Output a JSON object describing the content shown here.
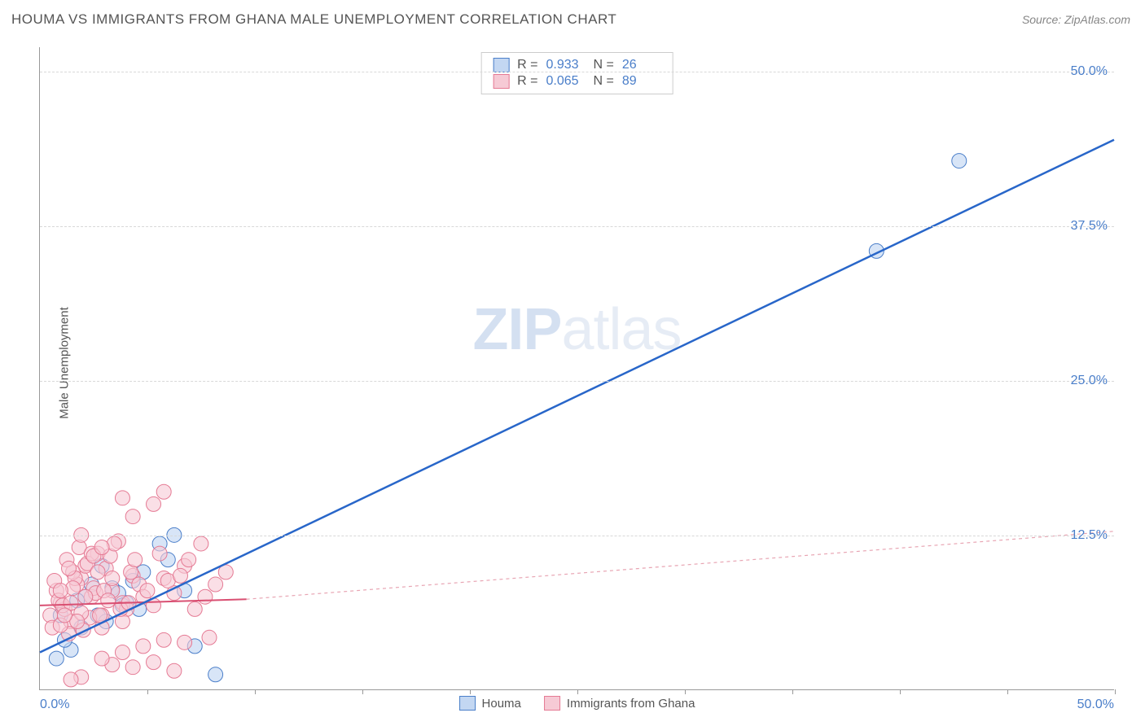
{
  "title": "HOUMA VS IMMIGRANTS FROM GHANA MALE UNEMPLOYMENT CORRELATION CHART",
  "source": "Source: ZipAtlas.com",
  "ylabel": "Male Unemployment",
  "watermark_bold": "ZIP",
  "watermark_light": "atlas",
  "chart": {
    "type": "scatter",
    "xlim": [
      0,
      52
    ],
    "ylim": [
      0,
      52
    ],
    "x_axis_labels": {
      "left": "0.0%",
      "right": "50.0%"
    },
    "y_gridlines": [
      12.5,
      25.0,
      37.5,
      50.0
    ],
    "y_tick_labels": [
      "12.5%",
      "25.0%",
      "37.5%",
      "50.0%"
    ],
    "x_tick_positions_pct": [
      10,
      20,
      30,
      40,
      50,
      60,
      70,
      80,
      90,
      100
    ],
    "background_color": "#ffffff",
    "grid_color": "#d8d8d8",
    "axis_color": "#999999",
    "series": [
      {
        "name": "Houma",
        "color_fill": "#c3d7f2",
        "color_stroke": "#4a7ec9",
        "marker_radius": 9,
        "marker_opacity": 0.65,
        "R": "0.933",
        "N": "26",
        "trend_line": {
          "x1": 0,
          "y1": 3.0,
          "x2": 52,
          "y2": 44.5,
          "dash": "none",
          "stroke": "#2866c9",
          "width": 2.5
        },
        "points": [
          [
            1.5,
            3.2
          ],
          [
            0.8,
            2.5
          ],
          [
            2.2,
            7.5
          ],
          [
            2.8,
            6.0
          ],
          [
            3.5,
            8.2
          ],
          [
            4.2,
            7.0
          ],
          [
            3.0,
            10.0
          ],
          [
            5.0,
            9.5
          ],
          [
            5.8,
            11.8
          ],
          [
            4.5,
            8.8
          ],
          [
            6.5,
            12.5
          ],
          [
            2.0,
            5.0
          ],
          [
            1.2,
            4.0
          ],
          [
            3.8,
            7.8
          ],
          [
            4.8,
            6.5
          ],
          [
            7.0,
            8.0
          ],
          [
            8.5,
            1.2
          ],
          [
            7.5,
            3.5
          ],
          [
            6.2,
            10.5
          ],
          [
            1.0,
            6.0
          ],
          [
            2.5,
            8.5
          ],
          [
            3.2,
            5.5
          ],
          [
            40.5,
            35.5
          ],
          [
            44.5,
            42.8
          ],
          [
            1.8,
            7.2
          ],
          [
            4.0,
            6.8
          ]
        ]
      },
      {
        "name": "Immigrants from Ghana",
        "color_fill": "#f6cad5",
        "color_stroke": "#e57a94",
        "marker_radius": 9,
        "marker_opacity": 0.6,
        "R": "0.065",
        "N": "89",
        "trend_line_solid": {
          "x1": 0,
          "y1": 6.8,
          "x2": 10,
          "y2": 7.3,
          "stroke": "#d94f72",
          "width": 2
        },
        "trend_line_dashed": {
          "x1": 10,
          "y1": 7.3,
          "x2": 52,
          "y2": 12.8,
          "stroke": "#e8a5b3",
          "width": 1.2,
          "dash": "4 4"
        },
        "points": [
          [
            0.5,
            6.0
          ],
          [
            1.0,
            7.0
          ],
          [
            0.8,
            8.0
          ],
          [
            1.5,
            5.5
          ],
          [
            2.0,
            9.0
          ],
          [
            1.2,
            6.5
          ],
          [
            2.5,
            7.5
          ],
          [
            0.6,
            5.0
          ],
          [
            1.8,
            8.5
          ],
          [
            3.0,
            6.0
          ],
          [
            2.2,
            10.0
          ],
          [
            1.4,
            4.5
          ],
          [
            2.8,
            11.0
          ],
          [
            3.5,
            8.0
          ],
          [
            1.6,
            9.5
          ],
          [
            0.9,
            7.2
          ],
          [
            2.4,
            5.8
          ],
          [
            3.2,
            9.8
          ],
          [
            1.1,
            6.8
          ],
          [
            2.6,
            8.2
          ],
          [
            4.0,
            7.0
          ],
          [
            3.8,
            12.0
          ],
          [
            2.0,
            6.2
          ],
          [
            1.3,
            10.5
          ],
          [
            4.5,
            9.2
          ],
          [
            3.0,
            5.0
          ],
          [
            2.7,
            7.8
          ],
          [
            1.9,
            11.5
          ],
          [
            4.2,
            6.5
          ],
          [
            0.7,
            8.8
          ],
          [
            3.4,
            10.8
          ],
          [
            2.1,
            4.8
          ],
          [
            1.7,
            9.0
          ],
          [
            4.8,
            8.5
          ],
          [
            2.9,
            6.0
          ],
          [
            3.6,
            11.8
          ],
          [
            1.0,
            5.2
          ],
          [
            5.0,
            7.5
          ],
          [
            2.3,
            10.2
          ],
          [
            4.4,
            9.5
          ],
          [
            1.5,
            7.0
          ],
          [
            3.1,
            8.0
          ],
          [
            5.5,
            6.8
          ],
          [
            2.0,
            12.5
          ],
          [
            4.6,
            10.5
          ],
          [
            1.8,
            5.5
          ],
          [
            3.3,
            7.2
          ],
          [
            6.0,
            9.0
          ],
          [
            2.5,
            11.0
          ],
          [
            5.2,
            8.0
          ],
          [
            1.2,
            6.0
          ],
          [
            4.0,
            5.5
          ],
          [
            6.5,
            7.8
          ],
          [
            2.8,
            9.5
          ],
          [
            5.8,
            11.0
          ],
          [
            1.6,
            8.2
          ],
          [
            3.9,
            6.5
          ],
          [
            7.0,
            10.0
          ],
          [
            2.2,
            7.5
          ],
          [
            6.2,
            8.8
          ],
          [
            1.4,
            9.8
          ],
          [
            4.3,
            7.0
          ],
          [
            7.5,
            6.5
          ],
          [
            2.6,
            10.8
          ],
          [
            6.8,
            9.2
          ],
          [
            1.0,
            8.0
          ],
          [
            5.5,
            15.0
          ],
          [
            8.0,
            7.5
          ],
          [
            3.0,
            11.5
          ],
          [
            7.2,
            10.5
          ],
          [
            4.0,
            15.5
          ],
          [
            8.5,
            8.5
          ],
          [
            3.5,
            9.0
          ],
          [
            7.8,
            11.8
          ],
          [
            4.5,
            14.0
          ],
          [
            9.0,
            9.5
          ],
          [
            4.0,
            3.0
          ],
          [
            3.5,
            2.0
          ],
          [
            5.0,
            3.5
          ],
          [
            6.0,
            4.0
          ],
          [
            6.5,
            1.5
          ],
          [
            2.0,
            1.0
          ],
          [
            3.0,
            2.5
          ],
          [
            4.5,
            1.8
          ],
          [
            5.5,
            2.2
          ],
          [
            1.5,
            0.8
          ],
          [
            7.0,
            3.8
          ],
          [
            8.2,
            4.2
          ],
          [
            6.0,
            16.0
          ]
        ]
      }
    ]
  },
  "legend_bottom": [
    {
      "label": "Houma",
      "swatch": "blue"
    },
    {
      "label": "Immigrants from Ghana",
      "swatch": "pink"
    }
  ]
}
